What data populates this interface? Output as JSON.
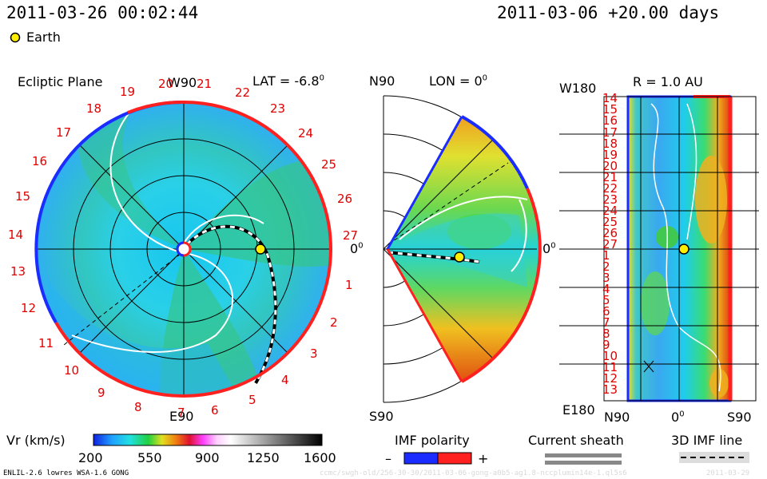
{
  "header": {
    "current_time": "2011-03-26 00:02:44",
    "reference_time": "2011-03-06 +20.00 days",
    "legend_earth_label": "Earth"
  },
  "ecliptic_panel": {
    "title": "Ecliptic Plane",
    "top_label": "W90",
    "bottom_label": "E90",
    "right_label": "0",
    "right_label_sup": "0",
    "lat_label": "LAT = -6.8",
    "lat_sup": "0",
    "carrington_ticks": [
      "1",
      "2",
      "3",
      "4",
      "5",
      "6",
      "7",
      "8",
      "9",
      "10",
      "11",
      "12",
      "13",
      "14",
      "15",
      "16",
      "17",
      "18",
      "19",
      "20",
      "21",
      "22",
      "23",
      "24",
      "25",
      "26",
      "27"
    ]
  },
  "meridional_panel": {
    "top_label": "N90",
    "bottom_label": "S90",
    "right_label": "0",
    "right_label_sup": "0",
    "lon_label": "LON = 0",
    "lon_sup": "0"
  },
  "radial_panel": {
    "r_label": "R = 1.0 AU",
    "top_left_label": "W180",
    "bottom_left_label": "E180",
    "bottom_n_label": "N90",
    "bottom_mid_label": "0",
    "bottom_mid_sup": "0",
    "bottom_s_label": "S90",
    "y_ticks": [
      "14",
      "15",
      "16",
      "17",
      "18",
      "19",
      "20",
      "21",
      "22",
      "23",
      "24",
      "25",
      "26",
      "27",
      "1",
      "2",
      "3",
      "4",
      "5",
      "6",
      "7",
      "8",
      "9",
      "10",
      "11",
      "12",
      "13"
    ]
  },
  "colorbar": {
    "label": "Vr (km/s)",
    "ticks": [
      "200",
      "550",
      "900",
      "1250",
      "1600"
    ]
  },
  "legend": {
    "imf_polarity_label": "IMF polarity",
    "minus": "–",
    "plus": "+",
    "current_sheath_label": "Current sheath",
    "imf_line_label": "3D IMF line"
  },
  "footer": {
    "model_label": "ENLIL-2.6 lowres WSA-1.6 GONG",
    "file_label": "ccmc/swgh-old/256-30-30/2011-03-06-gong-a0b5-ag1.8-nccplumin14e-1.ql5s6",
    "date_label": "2011-03-29"
  },
  "colors": {
    "outer_pos": "#ff2020",
    "outer_neg": "#1a2cff",
    "earth": "#ffee00",
    "background": "#ffffff"
  }
}
